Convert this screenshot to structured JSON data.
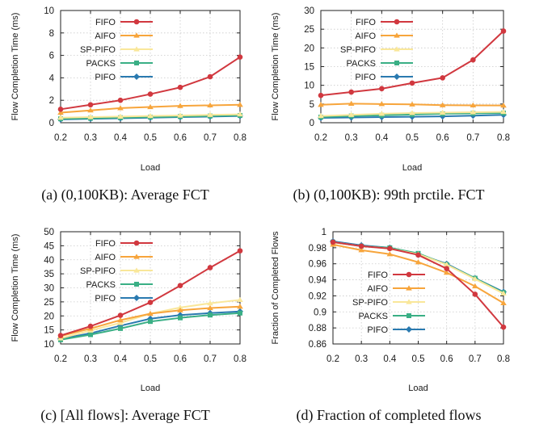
{
  "chart_data": [
    {
      "type": "line",
      "caption": "(a) (0,100KB): Average FCT",
      "xlabel": "Load",
      "ylabel": "Flow Completion Time (ms)",
      "x": [
        0.2,
        0.3,
        0.4,
        0.5,
        0.6,
        0.7,
        0.8
      ],
      "xlim": [
        0.2,
        0.8
      ],
      "ylim": [
        0,
        10
      ],
      "yticks": [
        0,
        2,
        4,
        6,
        8,
        10
      ],
      "yticks_text": [
        "0",
        "2",
        "4",
        "6",
        "8",
        "10"
      ],
      "grid": true,
      "legend_position": "top-left",
      "series": [
        {
          "name": "FIFO",
          "color": "#d1383f",
          "values": [
            1.2,
            1.6,
            2.0,
            2.55,
            3.15,
            4.1,
            5.85
          ]
        },
        {
          "name": "AIFO",
          "color": "#f7a53c",
          "values": [
            0.9,
            1.1,
            1.3,
            1.4,
            1.5,
            1.55,
            1.6
          ]
        },
        {
          "name": "SP-PIFO",
          "color": "#f9e79a",
          "values": [
            0.45,
            0.5,
            0.55,
            0.6,
            0.65,
            0.7,
            0.75
          ]
        },
        {
          "name": "PACKS",
          "color": "#3aaf85",
          "values": [
            0.35,
            0.4,
            0.45,
            0.5,
            0.55,
            0.6,
            0.65
          ]
        },
        {
          "name": "PIFO",
          "color": "#2a7ab0",
          "values": [
            0.3,
            0.35,
            0.4,
            0.45,
            0.5,
            0.55,
            0.6
          ]
        }
      ]
    },
    {
      "type": "line",
      "caption": "(b) (0,100KB): 99th prctile. FCT",
      "xlabel": "Load",
      "ylabel": "Flow Completion Time (ms)",
      "x": [
        0.2,
        0.3,
        0.4,
        0.5,
        0.6,
        0.7,
        0.8
      ],
      "xlim": [
        0.2,
        0.8
      ],
      "ylim": [
        0,
        30
      ],
      "yticks": [
        0,
        5,
        10,
        15,
        20,
        25,
        30
      ],
      "yticks_text": [
        "0",
        "5",
        "10",
        "15",
        "20",
        "25",
        "30"
      ],
      "grid": true,
      "legend_position": "top-left",
      "series": [
        {
          "name": "FIFO",
          "color": "#d1383f",
          "values": [
            7.3,
            8.2,
            9.1,
            10.6,
            12.0,
            16.8,
            24.5
          ]
        },
        {
          "name": "AIFO",
          "color": "#f7a53c",
          "values": [
            4.8,
            5.1,
            5.0,
            4.9,
            4.7,
            4.65,
            4.6
          ]
        },
        {
          "name": "SP-PIFO",
          "color": "#f9e79a",
          "values": [
            1.8,
            2.1,
            2.4,
            2.6,
            2.7,
            2.8,
            2.9
          ]
        },
        {
          "name": "PACKS",
          "color": "#3aaf85",
          "values": [
            1.5,
            1.8,
            2.0,
            2.2,
            2.4,
            2.5,
            2.6
          ]
        },
        {
          "name": "PIFO",
          "color": "#2a7ab0",
          "values": [
            1.3,
            1.4,
            1.5,
            1.6,
            1.7,
            1.9,
            2.1
          ]
        }
      ]
    },
    {
      "type": "line",
      "caption": "(c) [All flows]: Average FCT",
      "xlabel": "Load",
      "ylabel": "Flow Completion Time (ms)",
      "x": [
        0.2,
        0.3,
        0.4,
        0.5,
        0.6,
        0.7,
        0.8
      ],
      "xlim": [
        0.2,
        0.8
      ],
      "ylim": [
        10,
        50
      ],
      "yticks": [
        10,
        15,
        20,
        25,
        30,
        35,
        40,
        45,
        50
      ],
      "yticks_text": [
        "10",
        "15",
        "20",
        "25",
        "30",
        "35",
        "40",
        "45",
        "50"
      ],
      "grid": true,
      "legend_position": "top-left",
      "series": [
        {
          "name": "FIFO",
          "color": "#d1383f",
          "values": [
            13.0,
            16.3,
            20.2,
            24.8,
            30.8,
            37.2,
            43.2
          ]
        },
        {
          "name": "AIFO",
          "color": "#f7a53c",
          "values": [
            12.8,
            15.5,
            18.5,
            20.8,
            22.0,
            22.8,
            23.3
          ]
        },
        {
          "name": "SP-PIFO",
          "color": "#f9e79a",
          "values": [
            12.0,
            14.8,
            17.5,
            20.8,
            23.0,
            24.5,
            25.7
          ]
        },
        {
          "name": "PACKS",
          "color": "#3aaf85",
          "values": [
            11.5,
            13.3,
            15.5,
            18.0,
            19.3,
            20.3,
            21.0
          ]
        },
        {
          "name": "PIFO",
          "color": "#2a7ab0",
          "values": [
            11.8,
            13.8,
            16.5,
            19.0,
            20.3,
            21.0,
            21.6
          ]
        }
      ]
    },
    {
      "type": "line",
      "caption": "(d) Fraction of completed flows",
      "xlabel": "Load",
      "ylabel": "Fraction of Completed Flows",
      "x": [
        0.2,
        0.3,
        0.4,
        0.5,
        0.6,
        0.7,
        0.8
      ],
      "xlim": [
        0.2,
        0.8
      ],
      "ylim": [
        0.86,
        1.0
      ],
      "yticks": [
        0.86,
        0.88,
        0.9,
        0.92,
        0.94,
        0.96,
        0.98,
        1.0
      ],
      "yticks_text": [
        "0.86",
        "0.88",
        "0.9",
        "0.92",
        "0.94",
        "0.96",
        "0.98",
        "1"
      ],
      "grid": true,
      "legend_position": "bottom-left",
      "series": [
        {
          "name": "FIFO",
          "color": "#d1383f",
          "values": [
            0.987,
            0.982,
            0.979,
            0.971,
            0.954,
            0.922,
            0.881
          ]
        },
        {
          "name": "AIFO",
          "color": "#f7a53c",
          "values": [
            0.984,
            0.977,
            0.972,
            0.962,
            0.949,
            0.932,
            0.911
          ]
        },
        {
          "name": "SP-PIFO",
          "color": "#f9e79a",
          "values": [
            0.987,
            0.982,
            0.979,
            0.972,
            0.959,
            0.941,
            0.923
          ]
        },
        {
          "name": "PACKS",
          "color": "#3aaf85",
          "values": [
            0.987,
            0.982,
            0.98,
            0.973,
            0.959,
            0.942,
            0.924
          ]
        },
        {
          "name": "PIFO",
          "color": "#2a7ab0",
          "values": [
            0.988,
            0.983,
            0.98,
            0.972,
            0.96,
            0.942,
            0.925
          ]
        }
      ]
    }
  ]
}
